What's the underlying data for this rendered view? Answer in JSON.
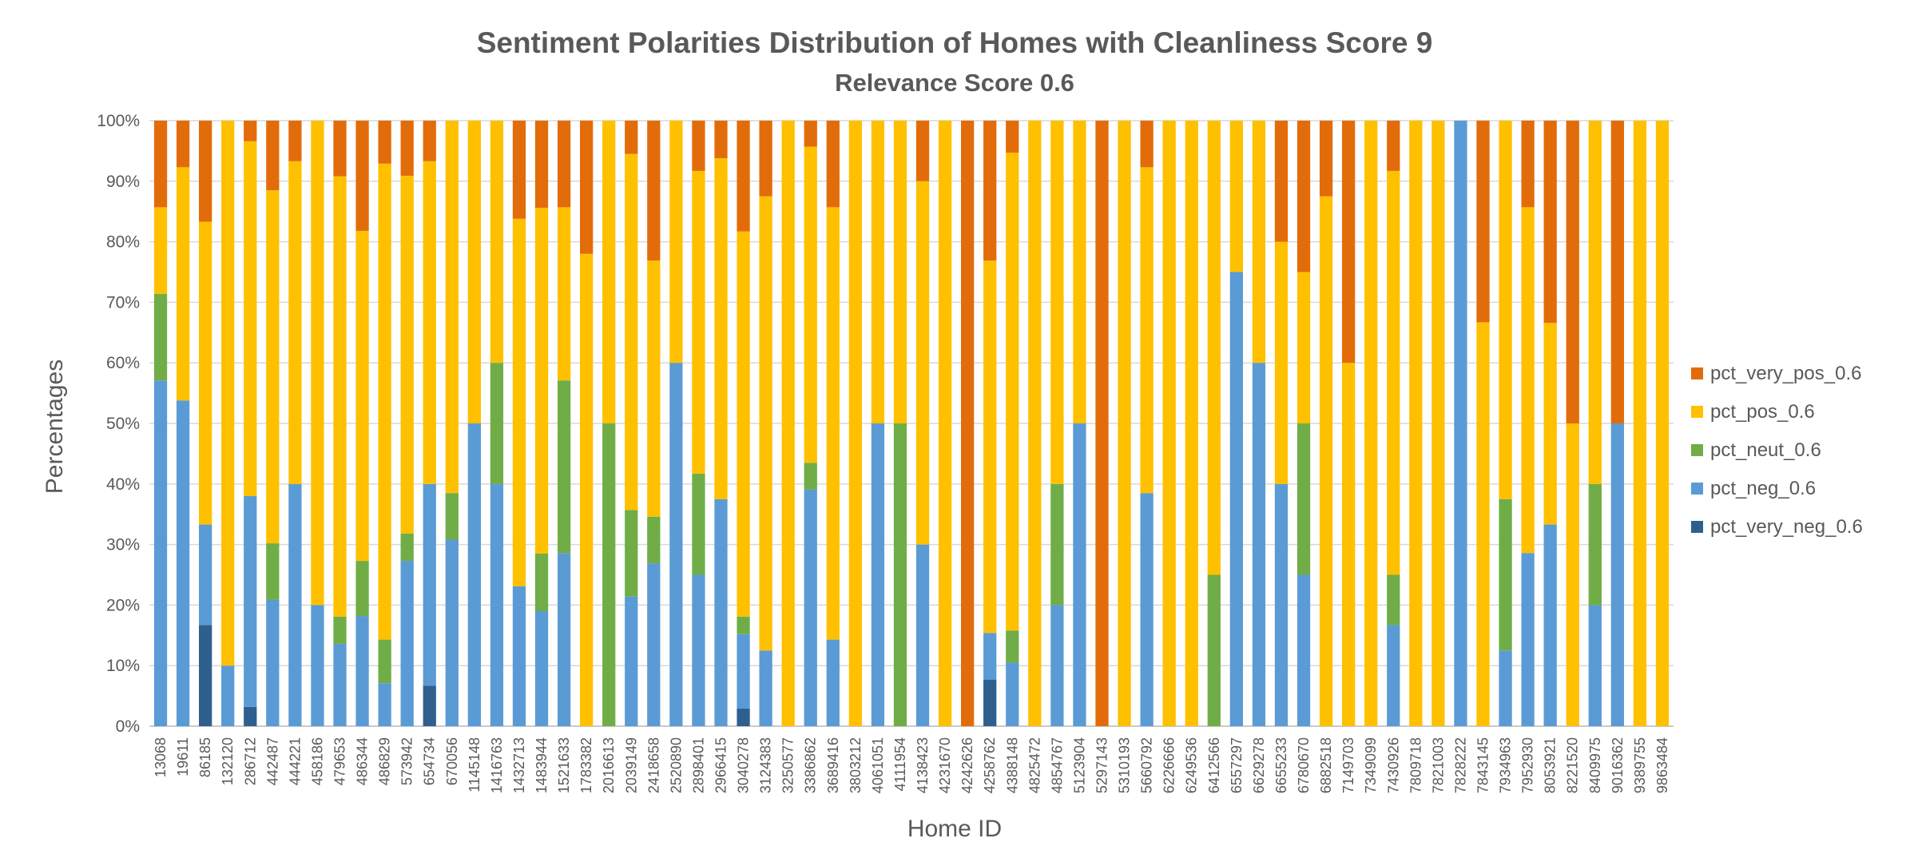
{
  "chart_data": {
    "type": "bar",
    "stacked": true,
    "title": "Sentiment Polarities Distribution of Homes with Cleanliness Score 9",
    "subtitle": "Relevance Score 0.6",
    "xlabel": "Home ID",
    "ylabel": "Percentages",
    "ylim": [
      0,
      100
    ],
    "yticks": [
      "0%",
      "10%",
      "20%",
      "30%",
      "40%",
      "50%",
      "60%",
      "70%",
      "80%",
      "90%",
      "100%"
    ],
    "grid": true,
    "legend_position": "right",
    "categories": [
      "13068",
      "19611",
      "86185",
      "132120",
      "286712",
      "442487",
      "444221",
      "458186",
      "479653",
      "486344",
      "486829",
      "573942",
      "654734",
      "670056",
      "1145148",
      "1416763",
      "1432713",
      "1483944",
      "1521633",
      "1783382",
      "2016613",
      "2039149",
      "2418658",
      "2520890",
      "2898401",
      "2966415",
      "3040278",
      "3124383",
      "3250577",
      "3386862",
      "3689416",
      "3803212",
      "4061051",
      "4111954",
      "4138423",
      "4231670",
      "4242626",
      "4258762",
      "4388148",
      "4825472",
      "4854767",
      "5123904",
      "5297143",
      "5310193",
      "5660792",
      "6226666",
      "6249536",
      "6412566",
      "6557297",
      "6629278",
      "6655233",
      "6780670",
      "6882518",
      "7149703",
      "7349099",
      "7430926",
      "7809718",
      "7821003",
      "7828222",
      "7843145",
      "7934963",
      "7952930",
      "8053921",
      "8221520",
      "8409975",
      "9016362",
      "9389755",
      "9863484"
    ],
    "series": [
      {
        "name": "pct_very_neg_0.6",
        "color": "#2f5f8f",
        "values": [
          0,
          0,
          16.7,
          0,
          3.2,
          0,
          0,
          0,
          0,
          0,
          0,
          0,
          6.7,
          0,
          0,
          0,
          0,
          0,
          0,
          0,
          0,
          0,
          0,
          0,
          0,
          0,
          2.9,
          0,
          0,
          0,
          0,
          0,
          0,
          0,
          0,
          0,
          0,
          7.7,
          0,
          0,
          0,
          0,
          0,
          0,
          0,
          0,
          0,
          0,
          0,
          0,
          0,
          0,
          0,
          0,
          0,
          0,
          0,
          0,
          0,
          0,
          0,
          0,
          0,
          0,
          0,
          0,
          0,
          0
        ]
      },
      {
        "name": "pct_neg_0.6",
        "color": "#5b9bd5",
        "values": [
          57.1,
          53.8,
          16.6,
          10,
          34.8,
          20.9,
          40,
          20,
          13.6,
          18.2,
          7.1,
          27.3,
          33.3,
          30.8,
          50,
          40,
          23.1,
          19,
          28.6,
          0,
          0,
          21.4,
          26.9,
          60,
          25,
          37.5,
          12.3,
          12.5,
          0,
          39.1,
          14.3,
          0,
          50,
          0,
          30,
          0,
          0,
          7.7,
          10.5,
          0,
          20,
          50,
          0,
          0,
          38.5,
          0,
          0,
          0,
          75,
          60,
          40,
          25,
          0,
          0,
          0,
          16.7,
          0,
          0,
          100,
          0,
          12.5,
          28.6,
          33.3,
          0,
          20,
          50,
          0,
          0
        ]
      },
      {
        "name": "pct_neut_0.6",
        "color": "#70ad47",
        "values": [
          14.3,
          0,
          0,
          0,
          0,
          9.3,
          0,
          0,
          4.5,
          9.1,
          7.2,
          4.5,
          0,
          7.7,
          0,
          20,
          0,
          9.5,
          28.5,
          0,
          50,
          14.3,
          7.7,
          0,
          16.7,
          0,
          2.9,
          0,
          0,
          4.4,
          0,
          0,
          0,
          50,
          0,
          0,
          0,
          0,
          5.3,
          0,
          20,
          0,
          0,
          0,
          0,
          0,
          0,
          25,
          0,
          0,
          0,
          25,
          0,
          0,
          0,
          8.3,
          0,
          0,
          0,
          0,
          25,
          0,
          0,
          0,
          20,
          0,
          0,
          0
        ]
      },
      {
        "name": "pct_pos_0.6",
        "color": "#ffc000",
        "values": [
          14.3,
          38.5,
          50,
          90,
          58.6,
          58.3,
          53.3,
          80,
          72.7,
          54.5,
          78.6,
          59.1,
          53.3,
          61.5,
          50,
          40,
          60.7,
          57.1,
          28.6,
          78,
          50,
          58.8,
          42.3,
          40,
          50,
          56.3,
          63.6,
          75,
          100,
          52.2,
          71.4,
          100,
          50,
          50,
          60,
          100,
          0,
          61.5,
          78.9,
          100,
          60,
          50,
          0,
          100,
          53.8,
          100,
          100,
          75,
          25,
          40,
          40,
          25,
          87.5,
          60,
          100,
          66.7,
          100,
          100,
          0,
          66.7,
          62.5,
          57.1,
          33.3,
          50,
          60,
          0,
          100,
          100
        ]
      },
      {
        "name": "pct_very_pos_0.6",
        "color": "#e36c0a",
        "values": [
          14.3,
          7.7,
          16.7,
          0,
          3.4,
          11.5,
          6.7,
          0,
          9.2,
          18.2,
          7.1,
          9.1,
          6.7,
          0,
          0,
          0,
          16.2,
          14.4,
          14.3,
          22,
          0,
          5.5,
          23.1,
          0,
          8.3,
          6.2,
          18.3,
          12.5,
          0,
          4.3,
          14.3,
          0,
          0,
          0,
          10,
          0,
          100,
          23.1,
          5.3,
          0,
          0,
          0,
          100,
          0,
          7.7,
          0,
          0,
          0,
          0,
          0,
          20,
          25,
          12.5,
          40,
          0,
          8.3,
          0,
          0,
          0,
          33.3,
          0,
          14.3,
          33.4,
          50,
          0,
          50,
          0,
          0
        ]
      }
    ]
  }
}
